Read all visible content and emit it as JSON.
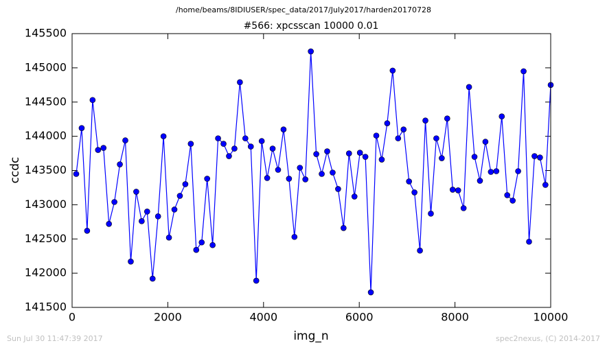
{
  "chart_data": {
    "type": "line",
    "suptitle": "/home/beams/8IDIUSER/spec_data/2017/July2017/harden20170728",
    "title": "#566: xpcsscan 10000 0.01",
    "xlabel": "img_n",
    "ylabel": "ccdc",
    "footer_left": "Sun Jul 30 11:47:39 2017",
    "footer_right": "spec2nexus, (C) 2014-2017",
    "x": [
      86,
      200,
      314,
      428,
      542,
      656,
      770,
      884,
      998,
      1112,
      1226,
      1340,
      1454,
      1568,
      1682,
      1796,
      1910,
      2024,
      2138,
      2252,
      2366,
      2480,
      2594,
      2708,
      2822,
      2936,
      3050,
      3164,
      3278,
      3392,
      3506,
      3620,
      3734,
      3848,
      3962,
      4076,
      4190,
      4304,
      4418,
      4532,
      4646,
      4760,
      4874,
      4988,
      5102,
      5216,
      5330,
      5444,
      5558,
      5672,
      5786,
      5900,
      6014,
      6128,
      6242,
      6356,
      6470,
      6584,
      6698,
      6812,
      6926,
      7040,
      7154,
      7268,
      7382,
      7496,
      7610,
      7724,
      7838,
      7952,
      8066,
      8180,
      8294,
      8408,
      8522,
      8636,
      8750,
      8864,
      8978,
      9092,
      9206,
      9320,
      9434,
      9548,
      9662,
      9776,
      9890,
      10000
    ],
    "series": [
      {
        "color": "#0000ff",
        "values": [
          143450,
          144120,
          142620,
          144530,
          143800,
          143830,
          142720,
          143040,
          143590,
          143940,
          142170,
          143190,
          142760,
          142900,
          141920,
          142830,
          144000,
          142520,
          142930,
          143130,
          143300,
          143890,
          142340,
          142450,
          143380,
          142410,
          143970,
          143890,
          143710,
          143820,
          144790,
          143970,
          143850,
          141890,
          143930,
          143390,
          143820,
          143510,
          144100,
          143380,
          142530,
          143540,
          143370,
          145240,
          143740,
          143450,
          143780,
          143470,
          143230,
          142660,
          143750,
          143120,
          143760,
          143700,
          141720,
          144010,
          143660,
          144190,
          144960,
          143970,
          144100,
          143340,
          143180,
          142330,
          144230,
          142870,
          143970,
          143680,
          144260,
          143220,
          143210,
          142950,
          144720,
          143700,
          143350,
          143920,
          143480,
          143490,
          144290,
          143140,
          143060,
          143490,
          144950,
          142460,
          143710,
          143690,
          143290,
          144750
        ]
      }
    ],
    "xlim": [
      0,
      10000
    ],
    "xticks": [
      0,
      2000,
      4000,
      6000,
      8000,
      10000
    ],
    "ylim": [
      141500,
      145500
    ],
    "yticks": [
      141500,
      142000,
      142500,
      143000,
      143500,
      144000,
      144500,
      145000,
      145500
    ]
  }
}
